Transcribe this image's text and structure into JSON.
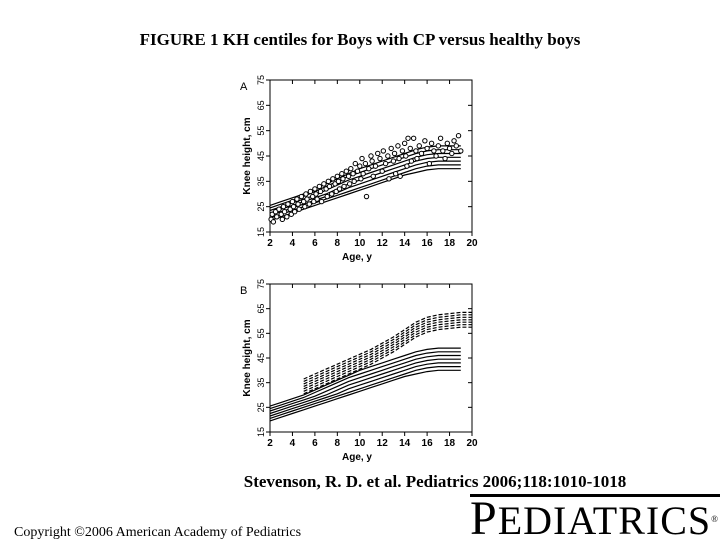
{
  "title": "FIGURE 1 KH centiles for Boys with CP versus healthy boys",
  "citation": "Stevenson, R. D. et al. Pediatrics 2006;118:1010-1018",
  "copyright": "Copyright ©2006 American Academy of Pediatrics",
  "logo": {
    "initial": "P",
    "rest": "EDIATRICS",
    "mark": "®"
  },
  "chart_data": [
    {
      "type": "scatter",
      "panel_label": "A",
      "xlabel": "Age, y",
      "ylabel": "Knee height, cm",
      "xlim": [
        2,
        20
      ],
      "ylim": [
        15,
        75
      ],
      "x_ticks": [
        "2",
        "4",
        "6",
        "8",
        "10",
        "12",
        "14",
        "16",
        "18",
        "20"
      ],
      "y_ticks": [
        "15",
        "25",
        "35",
        "45",
        "55",
        "65",
        "75"
      ],
      "grid": false,
      "centile_x": [
        2,
        3,
        4,
        5,
        6,
        7,
        8,
        9,
        10,
        11,
        12,
        13,
        14,
        15,
        16,
        17,
        18,
        19
      ],
      "centile_lines": [
        [
          19.5,
          21,
          22.5,
          24,
          25.5,
          27,
          28.5,
          30,
          31.5,
          33,
          34.5,
          36,
          37.5,
          38.5,
          39.5,
          40,
          40,
          40
        ],
        [
          20.5,
          22,
          23.5,
          25,
          26.5,
          28,
          29.5,
          31,
          32.5,
          34,
          35.5,
          37,
          38.5,
          40,
          41,
          41.5,
          41.5,
          41.5
        ],
        [
          21.5,
          23,
          24.5,
          26,
          27.5,
          29,
          30.5,
          32.5,
          34,
          35.5,
          37,
          38.5,
          40,
          41.5,
          42.5,
          43,
          43,
          43
        ],
        [
          22.5,
          24,
          25.5,
          27,
          28.5,
          30,
          32,
          34,
          35.5,
          37,
          38.5,
          40,
          41.5,
          43,
          44,
          44.5,
          44.5,
          44.5
        ],
        [
          23.5,
          25,
          26.5,
          28,
          29.5,
          31.5,
          33.5,
          35.5,
          37,
          38.5,
          40,
          41.5,
          43,
          44.5,
          45.5,
          46,
          46,
          46
        ],
        [
          24.5,
          26,
          27.5,
          29,
          31,
          33,
          35,
          37,
          38.5,
          40,
          41.5,
          43,
          44.5,
          46,
          47,
          47.5,
          47.5,
          47.5
        ],
        [
          25.5,
          27,
          28.5,
          30,
          32,
          34,
          36,
          38,
          40,
          41.5,
          43,
          44.5,
          46,
          47.5,
          48.5,
          49,
          49,
          49
        ]
      ],
      "points": [
        [
          2.1,
          20
        ],
        [
          2.2,
          22
        ],
        [
          2.3,
          19
        ],
        [
          2.5,
          23
        ],
        [
          2.6,
          21
        ],
        [
          2.8,
          24
        ],
        [
          3,
          22
        ],
        [
          3.1,
          20
        ],
        [
          3.2,
          25
        ],
        [
          3.3,
          23
        ],
        [
          3.5,
          21
        ],
        [
          3.6,
          26
        ],
        [
          3.8,
          24
        ],
        [
          3.9,
          22
        ],
        [
          4,
          27
        ],
        [
          4.1,
          25
        ],
        [
          4.2,
          23
        ],
        [
          4.4,
          28
        ],
        [
          4.5,
          26
        ],
        [
          4.6,
          24
        ],
        [
          4.8,
          29
        ],
        [
          5,
          27
        ],
        [
          5.1,
          25
        ],
        [
          5.2,
          30
        ],
        [
          5.3,
          28
        ],
        [
          5.5,
          26
        ],
        [
          5.6,
          31
        ],
        [
          5.8,
          29
        ],
        [
          5.9,
          27
        ],
        [
          6,
          32
        ],
        [
          6.1,
          30
        ],
        [
          6.2,
          28
        ],
        [
          6.4,
          33
        ],
        [
          6.5,
          31
        ],
        [
          6.6,
          27
        ],
        [
          6.8,
          34
        ],
        [
          7,
          32
        ],
        [
          7.1,
          29
        ],
        [
          7.2,
          35
        ],
        [
          7.3,
          33
        ],
        [
          7.5,
          30
        ],
        [
          7.6,
          36
        ],
        [
          7.8,
          34
        ],
        [
          7.9,
          31
        ],
        [
          8,
          37
        ],
        [
          8.1,
          35
        ],
        [
          8.2,
          32
        ],
        [
          8.4,
          38
        ],
        [
          8.5,
          36
        ],
        [
          8.6,
          33
        ],
        [
          8.8,
          39
        ],
        [
          9,
          37
        ],
        [
          9.1,
          34
        ],
        [
          9.2,
          40
        ],
        [
          9.4,
          38
        ],
        [
          9.5,
          35
        ],
        [
          9.6,
          42
        ],
        [
          9.8,
          39
        ],
        [
          10,
          41
        ],
        [
          10.1,
          36
        ],
        [
          10.2,
          44
        ],
        [
          10.3,
          38
        ],
        [
          10.5,
          42
        ],
        [
          10.6,
          29
        ],
        [
          10.8,
          40
        ],
        [
          11,
          45
        ],
        [
          11.1,
          43
        ],
        [
          11.2,
          37
        ],
        [
          11.4,
          41
        ],
        [
          11.6,
          46
        ],
        [
          11.8,
          44
        ],
        [
          12,
          39
        ],
        [
          12.1,
          47
        ],
        [
          12.3,
          42
        ],
        [
          12.5,
          45
        ],
        [
          12.6,
          36
        ],
        [
          12.8,
          48
        ],
        [
          13,
          43
        ],
        [
          13.1,
          46
        ],
        [
          13.2,
          38
        ],
        [
          13.4,
          49
        ],
        [
          13.5,
          44
        ],
        [
          13.6,
          37
        ],
        [
          13.8,
          47
        ],
        [
          14,
          50
        ],
        [
          14.1,
          45
        ],
        [
          14.2,
          41
        ],
        [
          14.3,
          52
        ],
        [
          14.5,
          48
        ],
        [
          14.6,
          43
        ],
        [
          14.8,
          52
        ],
        [
          15,
          47
        ],
        [
          15.1,
          44
        ],
        [
          15.3,
          49
        ],
        [
          15.5,
          46
        ],
        [
          15.8,
          51
        ],
        [
          16,
          48
        ],
        [
          16.2,
          42
        ],
        [
          16.4,
          50
        ],
        [
          16.6,
          47
        ],
        [
          16.8,
          45
        ],
        [
          17,
          49
        ],
        [
          17.2,
          52
        ],
        [
          17.4,
          47
        ],
        [
          17.6,
          44
        ],
        [
          17.8,
          50
        ],
        [
          18,
          48
        ],
        [
          18.2,
          46
        ],
        [
          18.4,
          51
        ],
        [
          18.6,
          49
        ],
        [
          18.8,
          53
        ],
        [
          19,
          47
        ]
      ]
    },
    {
      "type": "line",
      "panel_label": "B",
      "xlabel": "Age, y",
      "ylabel": "Knee height, cm",
      "xlim": [
        2,
        20
      ],
      "ylim": [
        15,
        75
      ],
      "x_ticks": [
        "2",
        "4",
        "6",
        "8",
        "10",
        "12",
        "14",
        "16",
        "18",
        "20"
      ],
      "y_ticks": [
        "15",
        "25",
        "35",
        "45",
        "55",
        "65",
        "75"
      ],
      "grid": false,
      "solid_x": [
        2,
        3,
        4,
        5,
        6,
        7,
        8,
        9,
        10,
        11,
        12,
        13,
        14,
        15,
        16,
        17,
        18,
        19
      ],
      "solid_lines": [
        [
          19.5,
          21,
          22.5,
          24,
          25.5,
          27,
          28.5,
          30,
          31.5,
          33,
          34.5,
          36,
          37.5,
          38.5,
          39.5,
          40,
          40,
          40
        ],
        [
          20.5,
          22,
          23.5,
          25,
          26.5,
          28,
          29.5,
          31,
          32.5,
          34,
          35.5,
          37,
          38.5,
          40,
          41,
          41.5,
          41.5,
          41.5
        ],
        [
          21.5,
          23,
          24.5,
          26,
          27.5,
          29,
          30.5,
          32.5,
          34,
          35.5,
          37,
          38.5,
          40,
          41.5,
          42.5,
          43,
          43,
          43
        ],
        [
          22.5,
          24,
          25.5,
          27,
          28.5,
          30,
          32,
          34,
          35.5,
          37,
          38.5,
          40,
          41.5,
          43,
          44,
          44.5,
          44.5,
          44.5
        ],
        [
          23.5,
          25,
          26.5,
          28,
          29.5,
          31.5,
          33.5,
          35.5,
          37,
          38.5,
          40,
          41.5,
          43,
          44.5,
          45.5,
          46,
          46,
          46
        ],
        [
          24.5,
          26,
          27.5,
          29,
          31,
          33,
          35,
          37,
          38.5,
          40,
          41.5,
          43,
          44.5,
          46,
          47,
          47.5,
          47.5,
          47.5
        ],
        [
          25.5,
          27,
          28.5,
          30,
          32,
          34,
          36,
          38,
          40,
          41.5,
          43,
          44.5,
          46,
          47.5,
          48.5,
          49,
          49,
          49
        ]
      ],
      "dashed_x": [
        5,
        6,
        7,
        8,
        9,
        10,
        11,
        12,
        13,
        14,
        15,
        16,
        17,
        18,
        19,
        20
      ],
      "dashed_lines": [
        [
          30.5,
          32.5,
          34.5,
          36.5,
          38.5,
          40.5,
          42.5,
          45,
          47.5,
          50.5,
          53.5,
          55.5,
          56.5,
          57,
          57.5,
          57.5
        ],
        [
          31.5,
          33.5,
          35.5,
          37.5,
          39.5,
          41.5,
          43.5,
          46,
          48.5,
          51.5,
          54.5,
          56.5,
          57.5,
          58,
          58.5,
          58.5
        ],
        [
          32.5,
          34.5,
          36.5,
          38.5,
          40.5,
          42.5,
          44.5,
          47,
          49.5,
          52.5,
          55.5,
          57.5,
          58.5,
          59,
          59.5,
          59.5
        ],
        [
          33.5,
          35.5,
          37.5,
          39.5,
          41.5,
          43.5,
          45.5,
          48,
          50.5,
          53.5,
          56.5,
          58.5,
          59.5,
          60,
          60.5,
          60.5
        ],
        [
          34.5,
          36.5,
          38.5,
          40.5,
          42.5,
          44.5,
          46.5,
          49,
          51.5,
          54.5,
          57.5,
          59.5,
          60.5,
          61,
          61.5,
          61.5
        ],
        [
          35.5,
          37.5,
          39.5,
          41.5,
          43.5,
          45.5,
          47.5,
          50,
          52.5,
          55.5,
          58.5,
          60.5,
          61.5,
          62,
          62.5,
          62.5
        ],
        [
          36.5,
          38.5,
          40.5,
          42.5,
          44.5,
          46.5,
          48.5,
          51,
          53.5,
          56.5,
          59.5,
          61.5,
          62.5,
          63,
          63.5,
          63.5
        ]
      ]
    }
  ]
}
